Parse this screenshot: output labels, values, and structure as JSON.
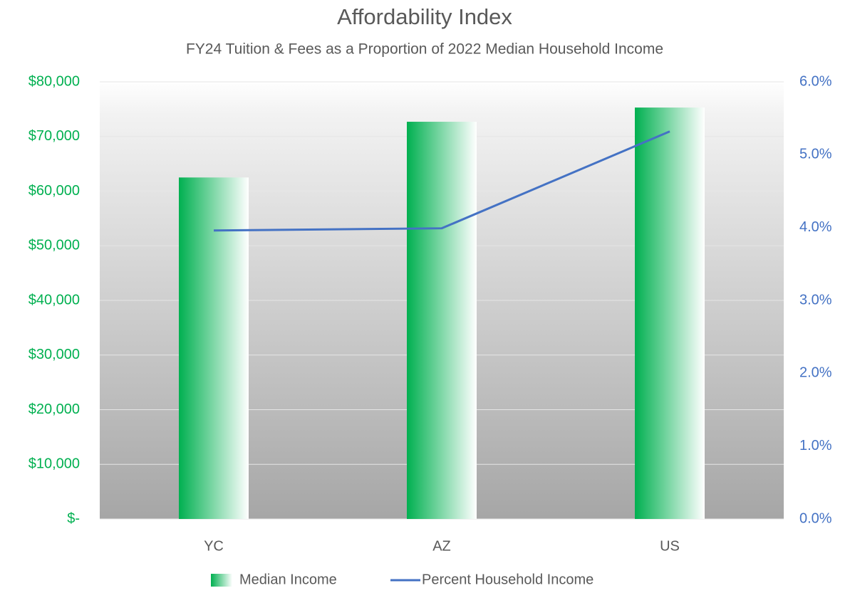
{
  "chart_data": {
    "type": "bar-line",
    "title": "Affordability Index",
    "subtitle": "FY24 Tuition & Fees as a Proportion of 2022 Median Household Income",
    "categories": [
      "YC",
      "AZ",
      "US"
    ],
    "series": [
      {
        "name": "Median Income",
        "type": "bar",
        "color": "#00b050",
        "axis": "y",
        "values": [
          62500,
          72700,
          75300
        ]
      },
      {
        "name": "Percent Household Income",
        "type": "line",
        "color": "#4472c4",
        "axis": "y2",
        "values": [
          3.96,
          3.99,
          5.32
        ]
      }
    ],
    "ylim": [
      0,
      80000
    ],
    "yticks": [
      {
        "value": 0,
        "label": "$-"
      },
      {
        "value": 10000,
        "label": "$10,000"
      },
      {
        "value": 20000,
        "label": "$20,000"
      },
      {
        "value": 30000,
        "label": "$30,000"
      },
      {
        "value": 40000,
        "label": "$40,000"
      },
      {
        "value": 50000,
        "label": "$50,000"
      },
      {
        "value": 60000,
        "label": "$60,000"
      },
      {
        "value": 70000,
        "label": "$70,000"
      },
      {
        "value": 80000,
        "label": "$80,000"
      }
    ],
    "y2lim": [
      0,
      6
    ],
    "y2ticks": [
      {
        "value": 0,
        "label": "0.0%"
      },
      {
        "value": 1,
        "label": "1.0%"
      },
      {
        "value": 2,
        "label": "2.0%"
      },
      {
        "value": 3,
        "label": "3.0%"
      },
      {
        "value": 4,
        "label": "4.0%"
      },
      {
        "value": 5,
        "label": "5.0%"
      },
      {
        "value": 6,
        "label": "6.0%"
      }
    ],
    "grid": true,
    "legend": "bottom"
  }
}
